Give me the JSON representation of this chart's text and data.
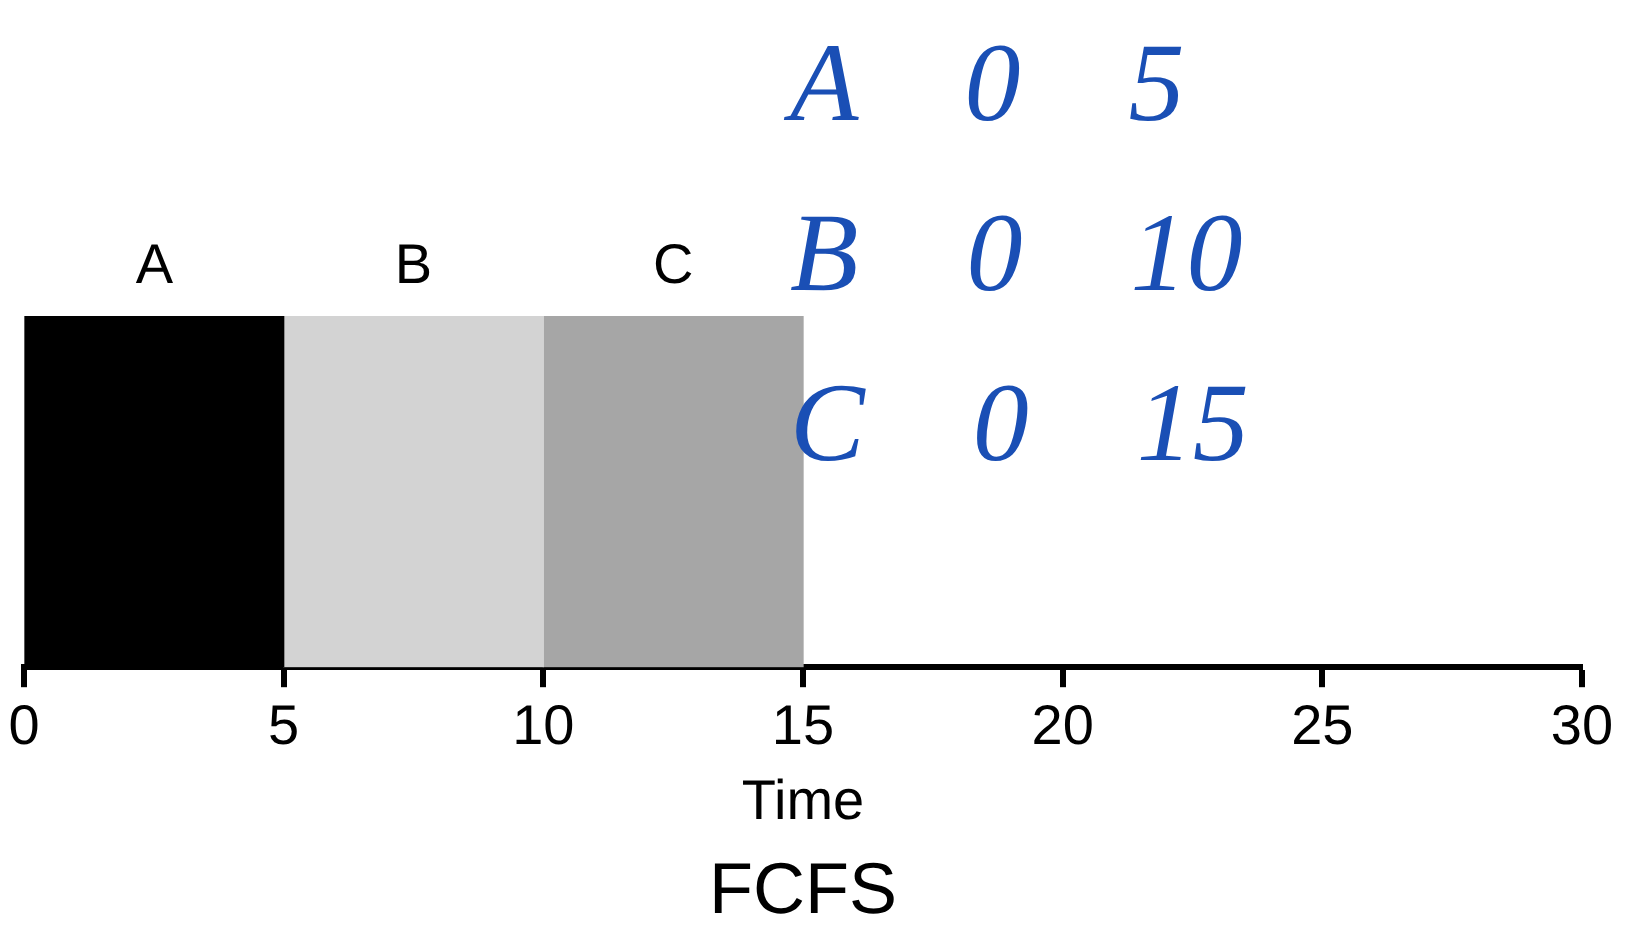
{
  "chart_data": {
    "type": "bar",
    "orientation": "horizontal",
    "stacked": true,
    "title": "FCFS",
    "xlabel": "Time",
    "categories": [
      null
    ],
    "series": [
      {
        "name": "A",
        "color": "#000000",
        "values": [
          5
        ]
      },
      {
        "name": "B",
        "color": "#d3d3d3",
        "values": [
          5
        ]
      },
      {
        "name": "C",
        "color": "#a6a6a6",
        "values": [
          5
        ]
      }
    ],
    "xlim": [
      0,
      30
    ],
    "xticks": [
      0,
      5,
      10,
      15,
      20,
      25,
      30
    ],
    "grid": false,
    "legend": false,
    "annotations": [
      "A 0 5",
      "B 0 10",
      "C 0 15"
    ]
  }
}
